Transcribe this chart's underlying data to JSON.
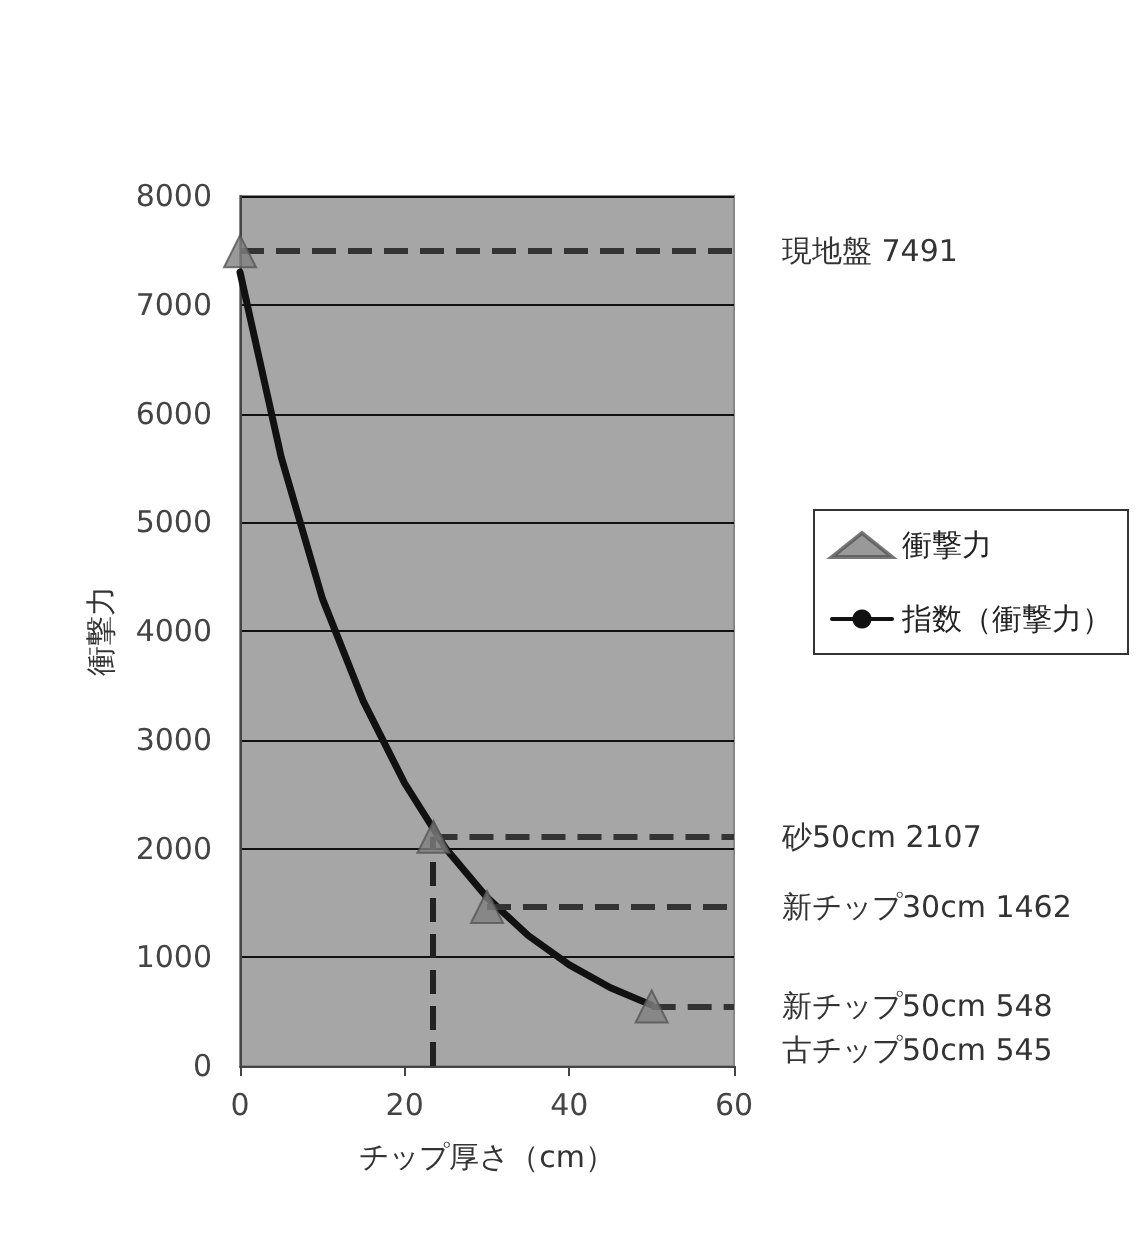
{
  "chart_data": {
    "type": "scatter",
    "xlabel": "チップ厚さ（cm）",
    "ylabel": "衝撃力",
    "xlim": [
      0,
      60
    ],
    "xticks": [
      0,
      20,
      40,
      60
    ],
    "ylim": [
      0,
      8000
    ],
    "yticks": [
      0,
      1000,
      2000,
      3000,
      4000,
      5000,
      6000,
      7000,
      8000
    ],
    "grid": "y",
    "legend": "right",
    "marker": "triangle",
    "series": [
      {
        "name": "衝撃力",
        "color": "#7f7f7f",
        "x": [
          0,
          23.5,
          30,
          50
        ],
        "values": [
          7491,
          2107,
          1462,
          548
        ]
      },
      {
        "name": "指数（衝撃力）",
        "type": "line",
        "color": "#111111",
        "marker": "none",
        "line_style": "solid",
        "x": [
          0,
          5,
          10,
          15,
          20,
          25,
          30,
          35,
          40,
          45,
          50
        ],
        "values": [
          7300,
          5600,
          4300,
          3350,
          2600,
          2000,
          1550,
          1200,
          930,
          720,
          560
        ]
      }
    ],
    "ref_lines": [
      {
        "axis": "y",
        "value": 7491,
        "label": "現地盤 7491",
        "color": "#333333",
        "line_style": "dashed"
      },
      {
        "axis": "y",
        "value": 2107,
        "label": "砂50cm 2107",
        "color": "#333333",
        "line_style": "dashed"
      },
      {
        "axis": "y",
        "value": 1462,
        "label": "新チップ30cm 1462",
        "color": "#333333",
        "line_style": "dashed"
      },
      {
        "axis": "y",
        "value": 548,
        "label": "新チップ50cm 548",
        "color": "#333333",
        "line_style": "dashed"
      },
      {
        "axis": "x",
        "value": 23.5,
        "color": "#222222",
        "line_style": "dashed"
      }
    ],
    "annotations": [
      "古チップ50cm 545"
    ]
  }
}
